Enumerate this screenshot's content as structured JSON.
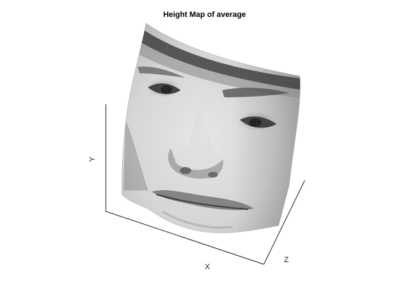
{
  "figure": {
    "title": "Height Map of average",
    "axes": {
      "x_label": "X",
      "y_label": "Y",
      "z_label": "Z"
    }
  },
  "surface": {
    "depicts": "face-height-map",
    "colormap": "gray",
    "mesh_color": "#f2f2f2"
  },
  "colors": {
    "background": "#ffffff",
    "axis_line": "#262626",
    "title_text": "#000000"
  }
}
